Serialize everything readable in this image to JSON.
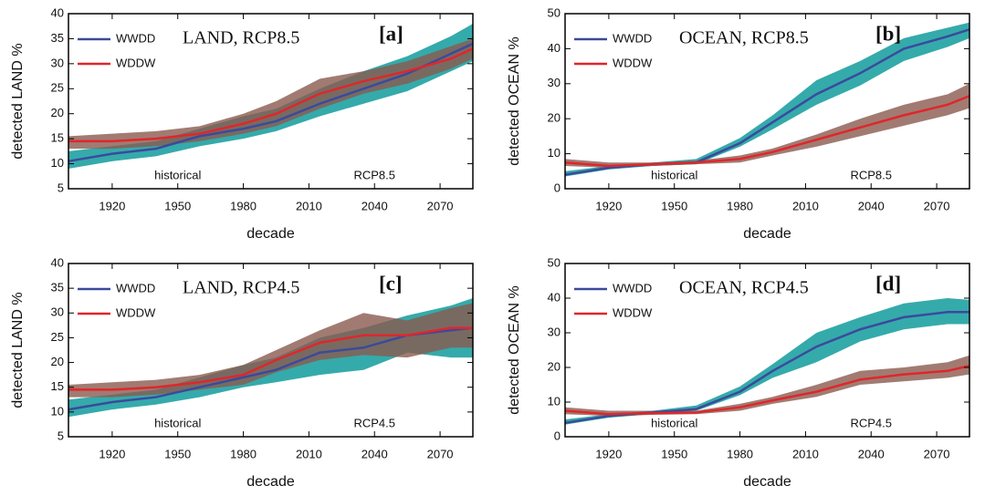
{
  "chart_data": [
    {
      "type": "line",
      "title": "LAND, RCP8.5",
      "panel_label": "[a]",
      "annotations": [
        "historical",
        "RCP8.5"
      ],
      "x_label": "decade",
      "y_label": "detected LAND %",
      "legend": "upper left",
      "xlim": [
        1900,
        2085
      ],
      "xticks": [
        1920,
        1950,
        1980,
        2010,
        2040,
        2070
      ],
      "ylim": [
        5,
        40
      ],
      "yticks": [
        5,
        10,
        15,
        20,
        25,
        30,
        35,
        40
      ],
      "x": [
        1900,
        1920,
        1940,
        1960,
        1980,
        1995,
        2015,
        2035,
        2055,
        2075,
        2085
      ],
      "series": [
        {
          "name": "WWDD",
          "color": "#3b4a9c",
          "band_color": "#2aa5a6",
          "values": [
            10.5,
            12,
            13,
            15.5,
            17,
            18.5,
            22,
            25,
            28,
            32,
            34
          ],
          "lower": [
            9,
            10.5,
            11.5,
            13.5,
            15,
            16.5,
            19.5,
            22,
            24.5,
            28.5,
            30.5
          ],
          "upper": [
            12.5,
            13.5,
            14.5,
            17,
            19.5,
            21,
            25,
            28.5,
            31.5,
            35.5,
            38
          ]
        },
        {
          "name": "WDDW",
          "color": "#e0262b",
          "band_color": "#8a5a4f",
          "values": [
            14.5,
            14.5,
            15,
            16,
            18,
            20,
            24,
            26.5,
            28.5,
            31,
            33
          ],
          "lower": [
            13,
            13,
            13.5,
            14.5,
            16,
            17.5,
            21,
            24,
            26,
            29,
            31
          ],
          "upper": [
            15.5,
            16,
            16.5,
            17.5,
            20,
            22.5,
            27,
            28.5,
            30.5,
            33.5,
            35
          ]
        }
      ]
    },
    {
      "type": "line",
      "title": "OCEAN, RCP8.5",
      "panel_label": "[b]",
      "annotations": [
        "historical",
        "RCP8.5"
      ],
      "x_label": "decade",
      "y_label": "detected OCEAN %",
      "legend": "upper left",
      "xlim": [
        1900,
        2085
      ],
      "xticks": [
        1920,
        1950,
        1980,
        2010,
        2040,
        2070
      ],
      "ylim": [
        0,
        50
      ],
      "yticks": [
        0,
        10,
        20,
        30,
        40,
        50
      ],
      "x": [
        1900,
        1920,
        1940,
        1960,
        1980,
        1995,
        2015,
        2035,
        2055,
        2075,
        2085
      ],
      "series": [
        {
          "name": "WWDD",
          "color": "#3b4a9c",
          "band_color": "#2aa5a6",
          "values": [
            4,
            6,
            7,
            7.5,
            13,
            19,
            27,
            33,
            40,
            43.5,
            45.5
          ],
          "lower": [
            3.5,
            5.5,
            6.5,
            7,
            12,
            17,
            24,
            29.5,
            36.5,
            40.5,
            43
          ],
          "upper": [
            5,
            6.5,
            7.5,
            8.5,
            14.5,
            21,
            31,
            36.5,
            43,
            46,
            47.5
          ]
        },
        {
          "name": "WDDW",
          "color": "#e0262b",
          "band_color": "#8a5a4f",
          "values": [
            7.5,
            6.5,
            7,
            7.5,
            8.5,
            10.5,
            14,
            17.5,
            21,
            24,
            26.5
          ],
          "lower": [
            6.5,
            6,
            6.5,
            7,
            7.5,
            9.5,
            12,
            15,
            18,
            21,
            23
          ],
          "upper": [
            8.5,
            7.5,
            7.5,
            8,
            9.5,
            11.5,
            15.5,
            20,
            24,
            27,
            30
          ]
        }
      ]
    },
    {
      "type": "line",
      "title": "LAND, RCP4.5",
      "panel_label": "[c]",
      "annotations": [
        "historical",
        "RCP4.5"
      ],
      "x_label": "decade",
      "y_label": "detected LAND %",
      "legend": "upper left",
      "xlim": [
        1900,
        2085
      ],
      "xticks": [
        1920,
        1950,
        1980,
        2010,
        2040,
        2070
      ],
      "ylim": [
        5,
        40
      ],
      "yticks": [
        5,
        10,
        15,
        20,
        25,
        30,
        35,
        40
      ],
      "x": [
        1900,
        1920,
        1940,
        1960,
        1980,
        1995,
        2015,
        2035,
        2055,
        2075,
        2085
      ],
      "series": [
        {
          "name": "WWDD",
          "color": "#3b4a9c",
          "band_color": "#2aa5a6",
          "values": [
            10.5,
            12,
            13,
            15,
            17,
            18.5,
            22,
            23,
            25.5,
            26.5,
            27
          ],
          "lower": [
            9,
            10.5,
            11.5,
            13,
            15,
            16,
            17.5,
            18.5,
            22,
            21,
            21
          ],
          "upper": [
            12.5,
            13.5,
            14.5,
            17,
            19.5,
            21,
            25,
            27,
            29.5,
            31.5,
            33
          ]
        },
        {
          "name": "WDDW",
          "color": "#e0262b",
          "band_color": "#8a5a4f",
          "values": [
            14.5,
            14.5,
            15,
            16,
            17.5,
            20.5,
            24,
            25.5,
            25.5,
            27,
            27
          ],
          "lower": [
            13,
            13,
            13.5,
            14.5,
            15.5,
            18,
            20.5,
            21.5,
            21,
            23,
            23
          ],
          "upper": [
            15.5,
            16,
            16.5,
            17.5,
            19.5,
            22.5,
            26.5,
            30,
            28.5,
            31,
            32
          ]
        }
      ]
    },
    {
      "type": "line",
      "title": "OCEAN, RCP4.5",
      "panel_label": "[d]",
      "annotations": [
        "historical",
        "RCP4.5"
      ],
      "x_label": "decade",
      "y_label": "detected OCEAN %",
      "legend": "upper left",
      "xlim": [
        1900,
        2085
      ],
      "xticks": [
        1920,
        1950,
        1980,
        2010,
        2040,
        2070
      ],
      "ylim": [
        0,
        50
      ],
      "yticks": [
        0,
        10,
        20,
        30,
        40,
        50
      ],
      "x": [
        1900,
        1920,
        1940,
        1960,
        1980,
        1995,
        2015,
        2035,
        2055,
        2075,
        2085
      ],
      "series": [
        {
          "name": "WWDD",
          "color": "#3b4a9c",
          "band_color": "#2aa5a6",
          "values": [
            4,
            6,
            7,
            8,
            13,
            19,
            26,
            31,
            34.5,
            36,
            36
          ],
          "lower": [
            3.5,
            5.5,
            6.5,
            7.5,
            12,
            17,
            21.5,
            27.5,
            31,
            32.5,
            32.5
          ],
          "upper": [
            5,
            6.5,
            7.5,
            9,
            14.5,
            21,
            30,
            34.5,
            38.5,
            40,
            39.5
          ]
        },
        {
          "name": "WDDW",
          "color": "#e0262b",
          "band_color": "#8a5a4f",
          "values": [
            7.5,
            6.5,
            6.8,
            7,
            8.5,
            10.5,
            13,
            16.5,
            18,
            19,
            20.5
          ],
          "lower": [
            6.5,
            6,
            6.3,
            6.5,
            7.5,
            9.5,
            11.5,
            15,
            16,
            17,
            18
          ],
          "upper": [
            8.5,
            7.5,
            7.5,
            7.5,
            9.5,
            11.5,
            15,
            19,
            20,
            21.5,
            23.5
          ]
        }
      ]
    }
  ]
}
